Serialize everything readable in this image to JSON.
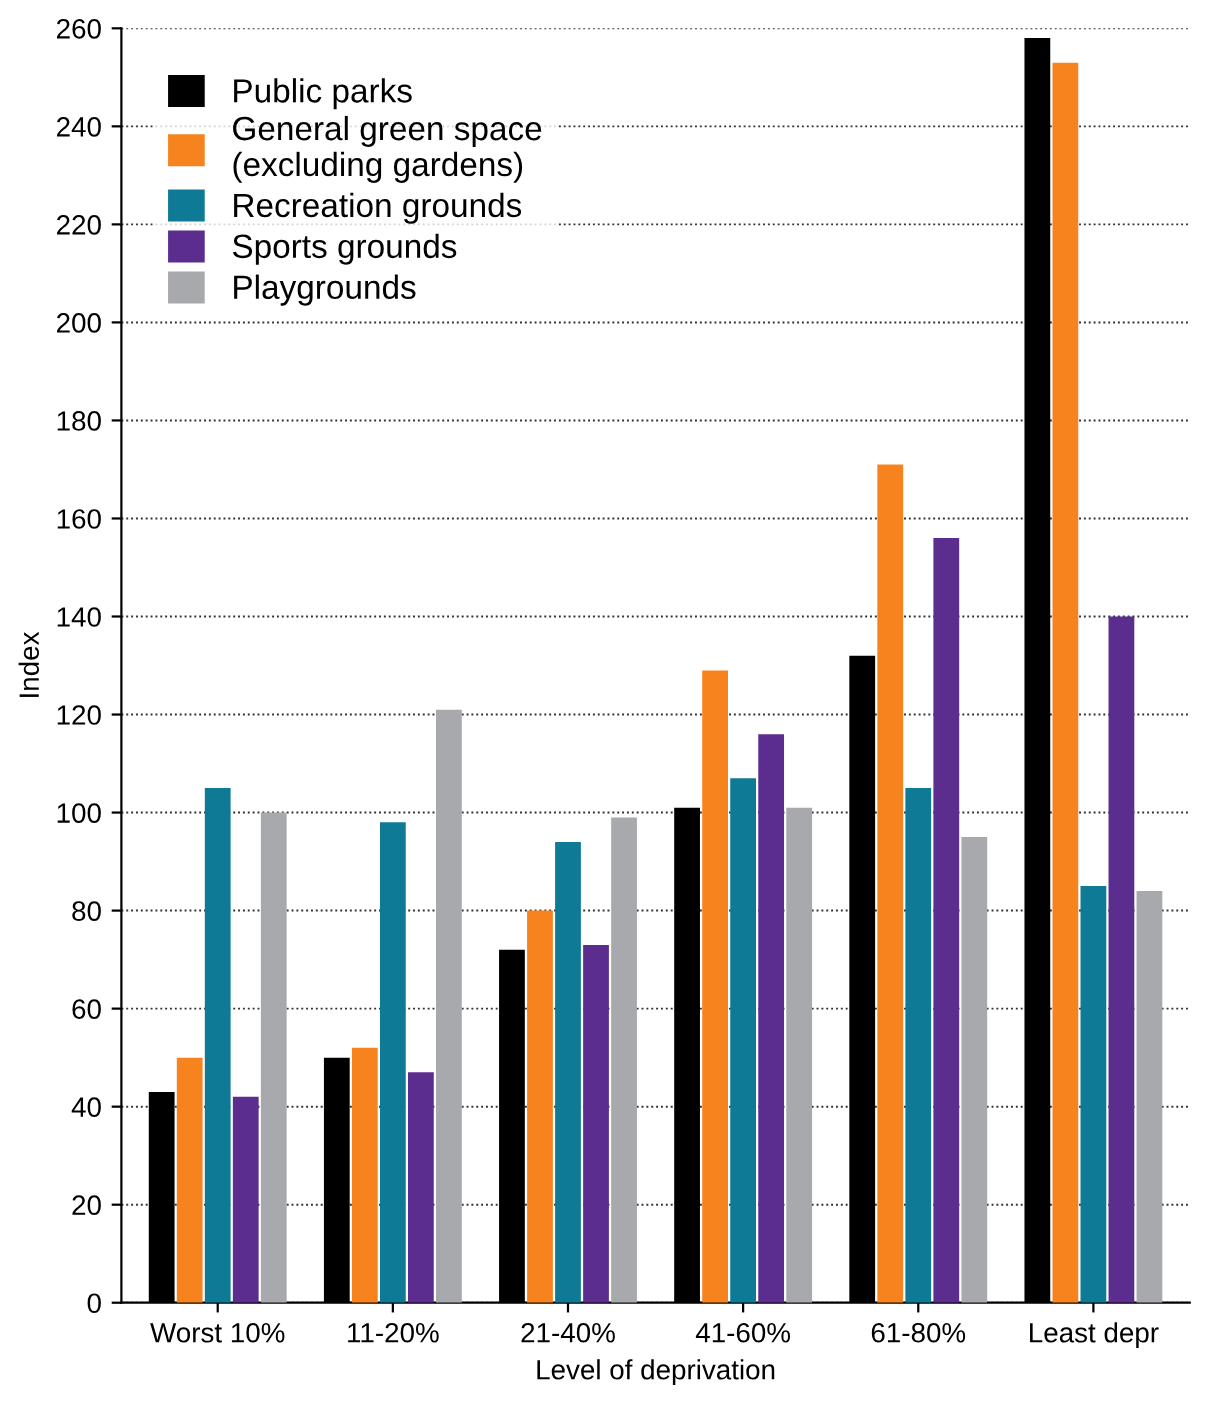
{
  "chart_data": {
    "type": "bar",
    "xlabel": "Level of deprivation",
    "ylabel": "Index",
    "categories": [
      "Worst 10%",
      "11-20%",
      "21-40%",
      "41-60%",
      "61-80%",
      "Least depr"
    ],
    "series": [
      {
        "name": "Public parks",
        "color": "#000000",
        "values": [
          43,
          50,
          72,
          101,
          132,
          258
        ]
      },
      {
        "name": "General green space\n(excluding gardens)",
        "color": "#f7831f",
        "values": [
          50,
          52,
          80,
          129,
          171,
          253
        ]
      },
      {
        "name": "Recreation grounds",
        "color": "#0f7a96",
        "values": [
          105,
          98,
          94,
          107,
          105,
          85
        ]
      },
      {
        "name": "Sports grounds",
        "color": "#5b2d8e",
        "values": [
          42,
          47,
          73,
          116,
          156,
          140
        ]
      },
      {
        "name": "Playgrounds",
        "color": "#a7a9ac",
        "values": [
          100,
          121,
          99,
          101,
          95,
          84
        ]
      }
    ],
    "ylim": [
      0,
      260
    ],
    "yticks": [
      0,
      20,
      40,
      60,
      80,
      100,
      120,
      140,
      160,
      180,
      200,
      220,
      240,
      260
    ],
    "grid": "y",
    "legend": "top left"
  }
}
